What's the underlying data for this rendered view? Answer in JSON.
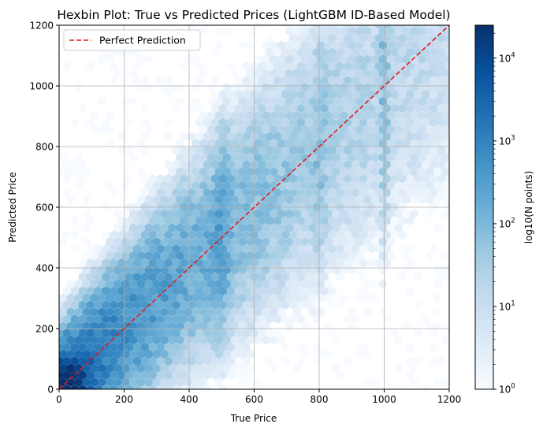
{
  "chart_data": {
    "type": "hexbin",
    "title": "Hexbin Plot: True vs Predicted Prices (LightGBM ID-Based Model)",
    "xlabel": "True Price",
    "ylabel": "Predicted Price",
    "xlim": [
      0,
      1200
    ],
    "ylim": [
      0,
      1200
    ],
    "xticks": [
      0,
      200,
      400,
      600,
      800,
      1000,
      1200
    ],
    "yticks": [
      0,
      200,
      400,
      600,
      800,
      1000,
      1200
    ],
    "xtick_labels": [
      "0",
      "200",
      "400",
      "600",
      "800",
      "1000",
      "1200"
    ],
    "ytick_labels": [
      "0",
      "200",
      "400",
      "600",
      "800",
      "1000",
      "1200"
    ],
    "grid": true,
    "colormap": "Blues",
    "reference_line": {
      "label": "Perfect Prediction",
      "x": [
        0,
        1200
      ],
      "y": [
        0,
        1200
      ],
      "color": "#e31a1c",
      "style": "dashed"
    },
    "legend": {
      "position": "top-left",
      "entries": [
        "Perfect Prediction"
      ]
    },
    "colorbar": {
      "label": "log10(N points)",
      "scale": "log",
      "range": [
        1,
        25000
      ],
      "tick_labels": [
        {
          "base": "10",
          "exp": "0"
        },
        {
          "base": "10",
          "exp": "1"
        },
        {
          "base": "10",
          "exp": "2"
        },
        {
          "base": "10",
          "exp": "3"
        },
        {
          "base": "10",
          "exp": "4"
        }
      ],
      "tick_values": [
        1,
        10,
        100,
        1000,
        10000
      ]
    },
    "density_description": {
      "peak": [
        20,
        20
      ],
      "peak_count": 25000,
      "concentration": "counts highest near origin and along the diagonal band up to ~500; sparse above diagonal at low true price; vertical density streaks at true prices ~500, ~800, ~1000"
    }
  }
}
